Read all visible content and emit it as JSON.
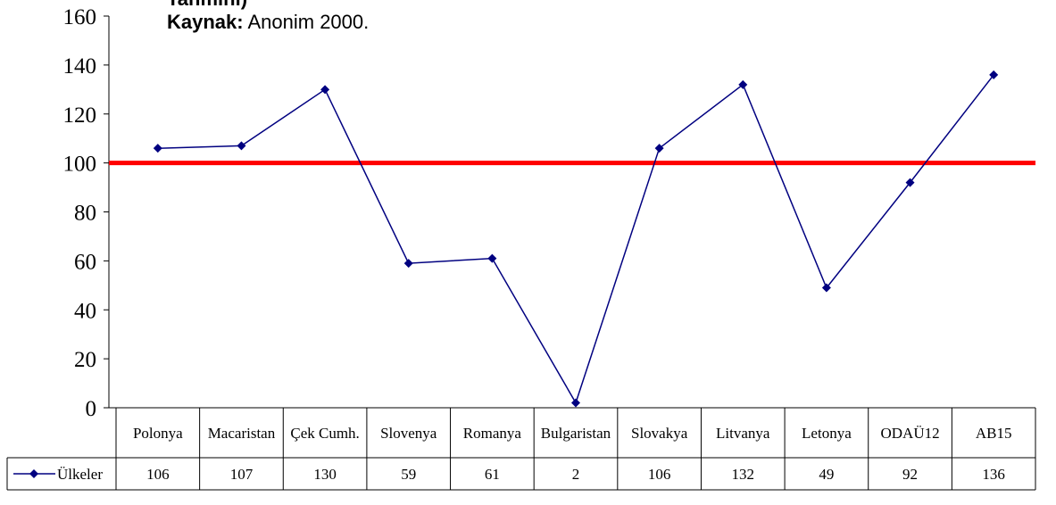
{
  "header": {
    "clipped_text": "Tahmini)",
    "source_label": "Kaynak:",
    "source_text": " Anonim 2000."
  },
  "chart_data": {
    "type": "line",
    "categories": [
      "Polonya",
      "Macaristan",
      "Çek Cumh.",
      "Slovenya",
      "Romanya",
      "Bulgaristan",
      "Slovakya",
      "Litvanya",
      "Letonya",
      "ODAÜ12",
      "AB15"
    ],
    "series": [
      {
        "name": "Ülkeler",
        "values": [
          106,
          107,
          130,
          59,
          61,
          2,
          106,
          132,
          49,
          92,
          136
        ]
      }
    ],
    "reference_line": {
      "value": 100,
      "color": "#ff0000"
    },
    "ylim": [
      0,
      160
    ],
    "yticks": [
      0,
      20,
      40,
      60,
      80,
      100,
      120,
      140,
      160
    ],
    "data_table": true,
    "series_color": "#000080",
    "title": "",
    "xlabel": "",
    "ylabel": ""
  }
}
